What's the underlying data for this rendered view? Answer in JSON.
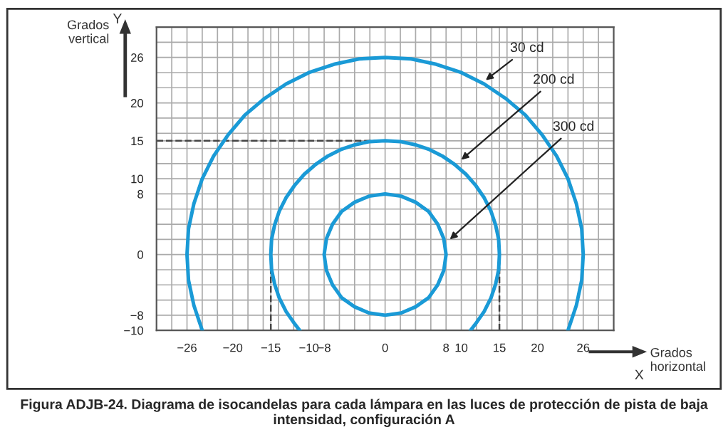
{
  "chart_data": {
    "type": "line",
    "title": "Figura ADJB-24. Diagrama de isocandelas para cada lámpara en las luces de protección de pista de baja intensidad, configuración A",
    "xlabel": "Grados\nhorizontal",
    "ylabel": "Grados\nvertical",
    "series": [
      {
        "color": "#1a9ad6",
        "x": [
          -24,
          -25.1,
          -25.8,
          -26,
          -25.8,
          -25.1,
          -24,
          -22.5,
          -20.6,
          -18.4,
          -15.8,
          -13,
          -10,
          -6.7,
          -3.4,
          0,
          3.4,
          6.7,
          10,
          13,
          15.8,
          18.4,
          20.6,
          22.5,
          24,
          25.1,
          25.8,
          26,
          25.8,
          25.1,
          24
        ],
        "values": [
          -10,
          -6.7,
          -3.4,
          0,
          3.4,
          6.7,
          10,
          13,
          15.8,
          18.4,
          20.6,
          22.5,
          24,
          25.1,
          25.8,
          26,
          25.8,
          25.1,
          24,
          22.5,
          20.6,
          18.4,
          15.8,
          13,
          10,
          6.7,
          3.4,
          0,
          -3.4,
          -6.7,
          -10
        ]
      },
      {
        "color": "#1a9ad6",
        "x": [
          -11.2,
          -11.9,
          -13,
          -13.9,
          -14.5,
          -14.9,
          -15,
          -14.9,
          -14.5,
          -13.9,
          -13,
          -11.9,
          -10.6,
          -9.1,
          -7.5,
          -5.7,
          -3.9,
          -2,
          0,
          2,
          3.9,
          5.7,
          7.5,
          9.1,
          10.6,
          11.9,
          13,
          13.9,
          14.5,
          14.9,
          15,
          14.9,
          14.5,
          13.9,
          13,
          11.9,
          11.2
        ],
        "values": [
          -10,
          -9.1,
          -7.5,
          -5.7,
          -3.9,
          -2,
          0,
          2,
          3.9,
          5.7,
          7.5,
          9.1,
          10.6,
          11.9,
          13,
          13.9,
          14.5,
          14.9,
          15,
          14.9,
          14.5,
          13.9,
          13,
          11.9,
          10.6,
          9.1,
          7.5,
          5.7,
          3.9,
          2,
          0,
          -2,
          -3.9,
          -5.7,
          -7.5,
          -9.1,
          -10
        ]
      },
      {
        "color": "#1a9ad6",
        "x": [
          0,
          -2.1,
          -4,
          -5.7,
          -6.9,
          -7.7,
          -8,
          -7.7,
          -6.9,
          -5.7,
          -4,
          -2.1,
          0,
          2.1,
          4,
          5.7,
          6.9,
          7.7,
          8,
          7.7,
          6.9,
          5.7,
          4,
          2.1,
          0,
          -2.1
        ],
        "values": [
          -8,
          -7.7,
          -6.9,
          -5.7,
          -4,
          -2.1,
          0,
          2.1,
          4,
          5.7,
          6.9,
          7.7,
          8,
          7.7,
          6.9,
          5.7,
          4,
          2.1,
          0,
          -2.1,
          -4,
          -5.7,
          -6.9,
          -7.7,
          -8,
          -7.7
        ]
      }
    ],
    "xlim": [
      -30,
      30
    ],
    "ylim": [
      -10,
      30
    ],
    "xticks": [
      {
        "value": -28,
        "label": null
      },
      -26,
      {
        "value": -24,
        "label": null
      },
      {
        "value": -22,
        "label": null
      },
      -20,
      {
        "value": -18,
        "label": null
      },
      {
        "value": -16,
        "label": null
      },
      -15,
      {
        "value": -14,
        "label": null
      },
      {
        "value": -12,
        "label": null
      },
      -10,
      -8,
      {
        "value": -6,
        "label": null
      },
      {
        "value": -4,
        "label": null
      },
      {
        "value": -2,
        "label": null
      },
      0,
      {
        "value": 2,
        "label": null
      },
      {
        "value": 4,
        "label": null
      },
      {
        "value": 6,
        "label": null
      },
      8,
      10,
      {
        "value": 12,
        "label": null
      },
      {
        "value": 14,
        "label": null
      },
      15,
      {
        "value": 16,
        "label": null
      },
      {
        "value": 18,
        "label": null
      },
      20,
      {
        "value": 22,
        "label": null
      },
      {
        "value": 24,
        "label": null
      },
      26,
      {
        "value": 28,
        "label": null
      }
    ],
    "yticks": [
      -10,
      -8,
      {
        "value": -6,
        "label": null
      },
      {
        "value": -4,
        "label": null
      },
      {
        "value": -2,
        "label": null
      },
      0,
      {
        "value": 2,
        "label": null
      },
      {
        "value": 4,
        "label": null
      },
      {
        "value": 6,
        "label": null
      },
      8,
      10,
      {
        "value": 12,
        "label": null
      },
      {
        "value": 14,
        "label": null
      },
      15,
      {
        "value": 16,
        "label": null
      },
      {
        "value": 18,
        "label": null
      },
      20,
      {
        "value": 22,
        "label": null
      },
      {
        "value": 24,
        "label": null
      },
      26,
      {
        "value": 28,
        "label": null
      }
    ],
    "grid": true,
    "marker": "none",
    "line_style": "solid",
    "legend": false,
    "ref_lines": [
      {
        "axis": "y",
        "value": 15,
        "color": "#444444",
        "line_style": "dashed"
      },
      {
        "axis": "x",
        "value": -15,
        "color": "#444444",
        "line_style": "dashed"
      },
      {
        "axis": "x",
        "value": 15,
        "color": "#444444",
        "line_style": "dashed"
      }
    ],
    "annotations": [
      {
        "text": "30 cd",
        "x": 13.2,
        "y": 23
      },
      {
        "text": "200 cd",
        "x": 10,
        "y": 12.5
      },
      {
        "text": "300 cd",
        "x": 8.5,
        "y": 2
      },
      "X",
      "Y"
    ]
  }
}
